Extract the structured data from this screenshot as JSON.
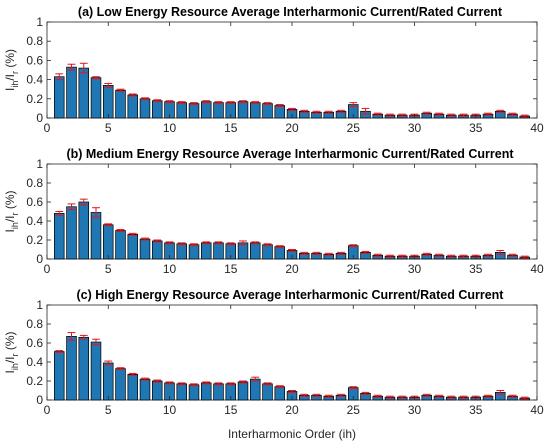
{
  "colors": {
    "bar": "#1f77b4",
    "bar_edge": "#000000",
    "error": "#e8141a",
    "axis": "#262626"
  },
  "xlabel": "Interharmonic Order (ih)",
  "chart_data": [
    {
      "type": "bar",
      "title": "(a) Low Energy Resource Average Interharmonic Current/Rated Current",
      "ylabel": {
        "main": "I",
        "sub1": "ih",
        "mid": "/I",
        "sub2": "r",
        "unit": " (%)"
      },
      "xlim": [
        0,
        40
      ],
      "ylim": [
        0,
        1
      ],
      "xticks": [
        "0",
        "5",
        "10",
        "15",
        "20",
        "25",
        "30",
        "35",
        "40"
      ],
      "yticks": [
        "0",
        "0.2",
        "0.4",
        "0.6",
        "0.8",
        "1"
      ],
      "x": [
        1,
        2,
        3,
        4,
        5,
        6,
        7,
        8,
        9,
        10,
        11,
        12,
        13,
        14,
        15,
        16,
        17,
        18,
        19,
        20,
        21,
        22,
        23,
        24,
        25,
        26,
        27,
        28,
        29,
        30,
        31,
        32,
        33,
        34,
        35,
        36,
        37,
        38,
        39
      ],
      "values": [
        0.43,
        0.53,
        0.52,
        0.42,
        0.34,
        0.29,
        0.24,
        0.2,
        0.18,
        0.17,
        0.16,
        0.15,
        0.17,
        0.16,
        0.16,
        0.17,
        0.16,
        0.15,
        0.13,
        0.09,
        0.07,
        0.06,
        0.06,
        0.07,
        0.14,
        0.07,
        0.04,
        0.03,
        0.03,
        0.03,
        0.05,
        0.04,
        0.03,
        0.03,
        0.03,
        0.04,
        0.07,
        0.04,
        0.02
      ],
      "errors": [
        0.03,
        0.03,
        0.05,
        0.01,
        0.02,
        0.01,
        0.01,
        0.01,
        0.01,
        0.01,
        0.01,
        0.01,
        0.01,
        0.01,
        0.01,
        0.01,
        0.01,
        0.01,
        0.01,
        0.01,
        0.01,
        0.01,
        0.01,
        0.01,
        0.02,
        0.03,
        0.01,
        0.01,
        0.01,
        0.01,
        0.01,
        0.01,
        0.01,
        0.01,
        0.01,
        0.01,
        0.01,
        0.01,
        0.01
      ]
    },
    {
      "type": "bar",
      "title": "(b) Medium Energy Resource Average Interharmonic Current/Rated Current",
      "ylabel": {
        "main": "I",
        "sub1": "ih",
        "mid": "/I",
        "sub2": "r",
        "unit": " (%)"
      },
      "xlim": [
        0,
        40
      ],
      "ylim": [
        0,
        1
      ],
      "xticks": [
        "0",
        "5",
        "10",
        "15",
        "20",
        "25",
        "30",
        "35",
        "40"
      ],
      "yticks": [
        "0",
        "0.2",
        "0.4",
        "0.6",
        "0.8",
        "1"
      ],
      "x": [
        1,
        2,
        3,
        4,
        5,
        6,
        7,
        8,
        9,
        10,
        11,
        12,
        13,
        14,
        15,
        16,
        17,
        18,
        19,
        20,
        21,
        22,
        23,
        24,
        25,
        26,
        27,
        28,
        29,
        30,
        31,
        32,
        33,
        34,
        35,
        36,
        37,
        38,
        39
      ],
      "values": [
        0.48,
        0.55,
        0.6,
        0.49,
        0.36,
        0.3,
        0.26,
        0.21,
        0.19,
        0.17,
        0.16,
        0.15,
        0.17,
        0.17,
        0.16,
        0.17,
        0.17,
        0.15,
        0.13,
        0.09,
        0.06,
        0.06,
        0.05,
        0.06,
        0.14,
        0.07,
        0.04,
        0.03,
        0.03,
        0.03,
        0.05,
        0.04,
        0.03,
        0.03,
        0.03,
        0.04,
        0.07,
        0.04,
        0.02
      ],
      "errors": [
        0.02,
        0.03,
        0.03,
        0.05,
        0.01,
        0.01,
        0.01,
        0.01,
        0.01,
        0.01,
        0.01,
        0.01,
        0.01,
        0.01,
        0.01,
        0.02,
        0.01,
        0.01,
        0.01,
        0.01,
        0.01,
        0.01,
        0.01,
        0.01,
        0.01,
        0.01,
        0.01,
        0.01,
        0.01,
        0.01,
        0.01,
        0.01,
        0.01,
        0.01,
        0.01,
        0.01,
        0.02,
        0.01,
        0.01
      ]
    },
    {
      "type": "bar",
      "title": "(c) High Energy Resource Average Interharmonic Current/Rated Current",
      "ylabel": {
        "main": "I",
        "sub1": "ih",
        "mid": "/I",
        "sub2": "r",
        "unit": " (%)"
      },
      "xlim": [
        0,
        40
      ],
      "ylim": [
        0,
        1
      ],
      "xticks": [
        "0",
        "5",
        "10",
        "15",
        "20",
        "25",
        "30",
        "35",
        "40"
      ],
      "yticks": [
        "0",
        "0.2",
        "0.4",
        "0.6",
        "0.8",
        "1"
      ],
      "x": [
        1,
        2,
        3,
        4,
        5,
        6,
        7,
        8,
        9,
        10,
        11,
        12,
        13,
        14,
        15,
        16,
        17,
        18,
        19,
        20,
        21,
        22,
        23,
        24,
        25,
        26,
        27,
        28,
        29,
        30,
        31,
        32,
        33,
        34,
        35,
        36,
        37,
        38,
        39
      ],
      "values": [
        0.51,
        0.67,
        0.66,
        0.61,
        0.39,
        0.33,
        0.27,
        0.22,
        0.2,
        0.18,
        0.17,
        0.16,
        0.18,
        0.17,
        0.17,
        0.19,
        0.22,
        0.17,
        0.14,
        0.09,
        0.05,
        0.05,
        0.04,
        0.05,
        0.13,
        0.07,
        0.04,
        0.03,
        0.03,
        0.03,
        0.05,
        0.04,
        0.03,
        0.03,
        0.03,
        0.04,
        0.08,
        0.04,
        0.02
      ],
      "errors": [
        0.01,
        0.04,
        0.02,
        0.03,
        0.02,
        0.01,
        0.01,
        0.01,
        0.01,
        0.01,
        0.01,
        0.01,
        0.01,
        0.01,
        0.01,
        0.01,
        0.02,
        0.01,
        0.01,
        0.01,
        0.01,
        0.01,
        0.01,
        0.01,
        0.01,
        0.01,
        0.01,
        0.01,
        0.01,
        0.01,
        0.01,
        0.01,
        0.01,
        0.01,
        0.01,
        0.01,
        0.02,
        0.01,
        0.01
      ]
    }
  ]
}
